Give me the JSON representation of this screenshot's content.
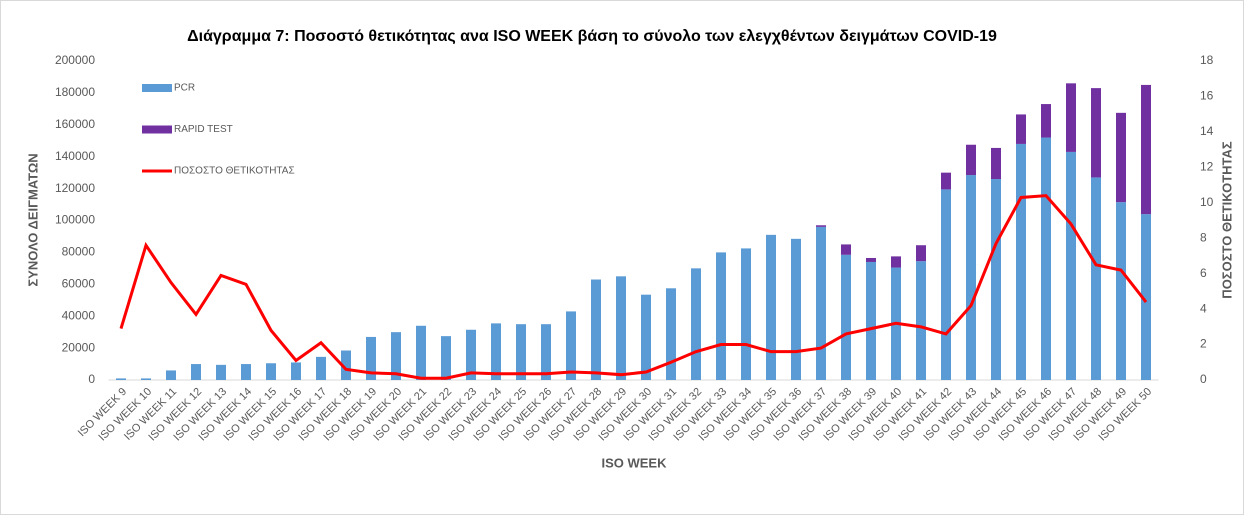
{
  "chart_data": {
    "type": "bar",
    "title": "Διάγραμμα 7: Ποσοστό θετικότητας ανα ISO WEEK  βάση το σύνολο των ελεγχθέντων δειγμάτων COVID-19",
    "x_label": "ISO WEEK",
    "y_label": "ΣΥΝΟΛΟ  ΔΕΙΓΜΑΤΩΝ",
    "y2_label": "ΠΟΣΟΣΤΟ ΘΕΤΙΚΟΤΗΤΑΣ",
    "stacked": true,
    "categories": [
      "ISO WEEK 9",
      "ISO WEEK 10",
      "ISO WEEK 11",
      "ISO WEEK 12",
      "ISO WEEK 13",
      "ISO WEEK 14",
      "ISO WEEK 15",
      "ISO WEEK 16",
      "ISO WEEK 17",
      "ISO WEEK 18",
      "ISO WEEK 19",
      "ISO WEEK 20",
      "ISO WEEK 21",
      "ISO WEEK 22",
      "ISO WEEK 23",
      "ISO WEEK 24",
      "ISO WEEK 25",
      "ISO WEEK 26",
      "ISO WEEK 27",
      "ISO WEEK 28",
      "ISO WEEK 29",
      "ISO WEEK 30",
      "ISO WEEK 31",
      "ISO WEEK 32",
      "ISO WEEK 33",
      "ISO WEEK 34",
      "ISO WEEK 35",
      "ISO WEEK 36",
      "ISO WEEK 37",
      "ISO WEEK 38",
      "ISO WEEK 39",
      "ISO WEEK 40",
      "ISO WEEK 41",
      "ISO WEEK 42",
      "ISO WEEK 43",
      "ISO WEEK 44",
      "ISO WEEK 45",
      "ISO WEEK 46",
      "ISO WEEK 47",
      "ISO WEEK 48",
      "ISO WEEK 49",
      "ISO WEEK 50"
    ],
    "series": [
      {
        "name": "PCR",
        "type": "bar",
        "color": "#5b9bd5",
        "values": [
          1000,
          1000,
          6000,
          10000,
          9500,
          10000,
          10500,
          11000,
          14500,
          18500,
          27000,
          30000,
          34000,
          27500,
          31500,
          35500,
          35000,
          35000,
          43000,
          63000,
          65000,
          53500,
          57500,
          70000,
          80000,
          82500,
          91000,
          88500,
          96000,
          78500,
          74000,
          70500,
          74500,
          119500,
          128500,
          126000,
          148000,
          152000,
          143000,
          127000,
          111500,
          104000
        ]
      },
      {
        "name": "RAPID TEST",
        "type": "bar",
        "color": "#7030a0",
        "values": [
          0,
          0,
          0,
          0,
          0,
          0,
          0,
          0,
          0,
          0,
          0,
          0,
          0,
          0,
          0,
          0,
          0,
          0,
          0,
          0,
          0,
          0,
          0,
          0,
          0,
          0,
          0,
          0,
          1000,
          6500,
          2500,
          7000,
          10000,
          10500,
          19000,
          19500,
          18500,
          21000,
          43000,
          56000,
          56000,
          81000
        ]
      },
      {
        "name": "ΠΟΣΟΣΤΟ ΘΕΤΙΚΟΤΗΤΑΣ",
        "type": "line",
        "axis": "y2",
        "color": "#ff0000",
        "values": [
          2.9,
          7.6,
          5.5,
          3.7,
          5.9,
          5.4,
          2.8,
          1.1,
          2.1,
          0.6,
          0.4,
          0.35,
          0.1,
          0.1,
          0.4,
          0.35,
          0.35,
          0.35,
          0.45,
          0.4,
          0.3,
          0.45,
          1.0,
          1.6,
          2.0,
          2.0,
          1.6,
          1.6,
          1.8,
          2.6,
          2.9,
          3.2,
          3.0,
          2.6,
          4.2,
          7.7,
          10.3,
          10.4,
          8.8,
          6.5,
          6.2,
          4.4
        ]
      }
    ],
    "ylim": [
      0,
      200000
    ],
    "yticks": [
      0,
      20000,
      40000,
      60000,
      80000,
      100000,
      120000,
      140000,
      160000,
      180000,
      200000
    ],
    "y2lim": [
      0,
      18
    ],
    "y2ticks": [
      0,
      2,
      4,
      6,
      8,
      10,
      12,
      14,
      16,
      18
    ]
  }
}
